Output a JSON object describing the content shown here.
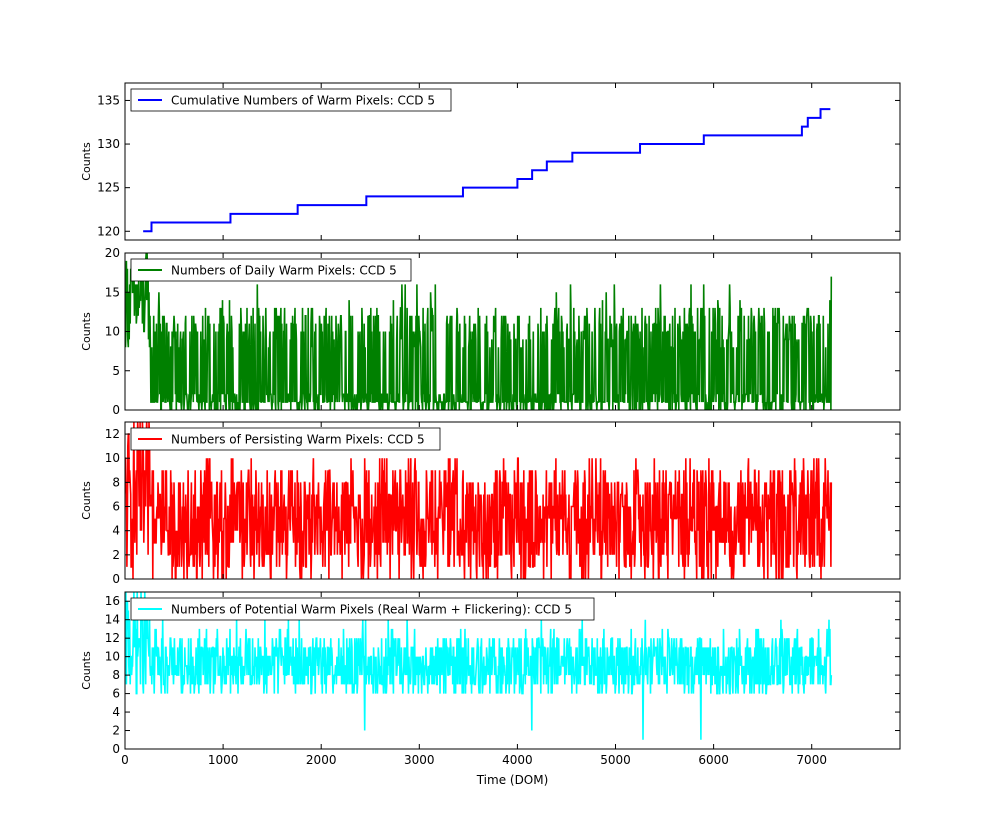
{
  "chart_data": [
    {
      "type": "line",
      "style": "step",
      "series": [
        {
          "name": "Cumulative Numbers of Warm Pixels: CCD 5",
          "color": "#0000ff",
          "x": [
            185,
            270,
            1075,
            1760,
            2460,
            3445,
            4000,
            4150,
            4300,
            4560,
            5250,
            5900,
            6900,
            6960,
            7090,
            7190
          ],
          "y": [
            120,
            121,
            122,
            123,
            124,
            125,
            126,
            127,
            128,
            129,
            130,
            131,
            132,
            133,
            134,
            134
          ]
        }
      ],
      "xlim": [
        0,
        7900
      ],
      "ylim": [
        119,
        137
      ],
      "yticks": [
        120,
        125,
        130,
        135
      ],
      "ylabel": "Counts",
      "legend": "upper-left"
    },
    {
      "type": "line",
      "style": "dense",
      "series": [
        {
          "name": "Numbers of Daily Warm Pixels: CCD 5",
          "color": "#008000",
          "x_start": 0,
          "x_end": 7200,
          "typical_low": 8,
          "typical_high": 13,
          "early_peak": 20,
          "late_peak": 17
        }
      ],
      "xlim": [
        0,
        7900
      ],
      "ylim": [
        0,
        20
      ],
      "yticks": [
        0,
        5,
        10,
        15,
        20
      ],
      "ylabel": "Counts",
      "legend": "upper-left"
    },
    {
      "type": "line",
      "style": "dense",
      "series": [
        {
          "name": "Numbers of Persisting Warm Pixels: CCD 5",
          "color": "#ff0000",
          "x_start": 0,
          "x_end": 7200,
          "typical_low": 0,
          "typical_high": 9,
          "early_peak": 13,
          "late_peak": 10
        }
      ],
      "xlim": [
        0,
        7900
      ],
      "ylim": [
        0,
        13
      ],
      "yticks": [
        0,
        2,
        4,
        6,
        8,
        10,
        12
      ],
      "ylabel": "Counts",
      "legend": "upper-left"
    },
    {
      "type": "line",
      "style": "dense",
      "series": [
        {
          "name": "Numbers of Potential Warm Pixels (Real Warm + Flickering): CCD 5",
          "color": "#00ffff",
          "x_start": 0,
          "x_end": 7200,
          "typical_low": 6,
          "typical_high": 12,
          "early_peak": 17,
          "late_peak": 14
        }
      ],
      "xlim": [
        0,
        7900
      ],
      "ylim": [
        0,
        17
      ],
      "yticks": [
        0,
        2,
        4,
        6,
        8,
        10,
        12,
        14,
        16
      ],
      "ylabel": "Counts",
      "xlabel": "Time (DOM)",
      "xticks": [
        0,
        1000,
        2000,
        3000,
        4000,
        5000,
        6000,
        7000
      ],
      "legend": "upper-left"
    }
  ]
}
